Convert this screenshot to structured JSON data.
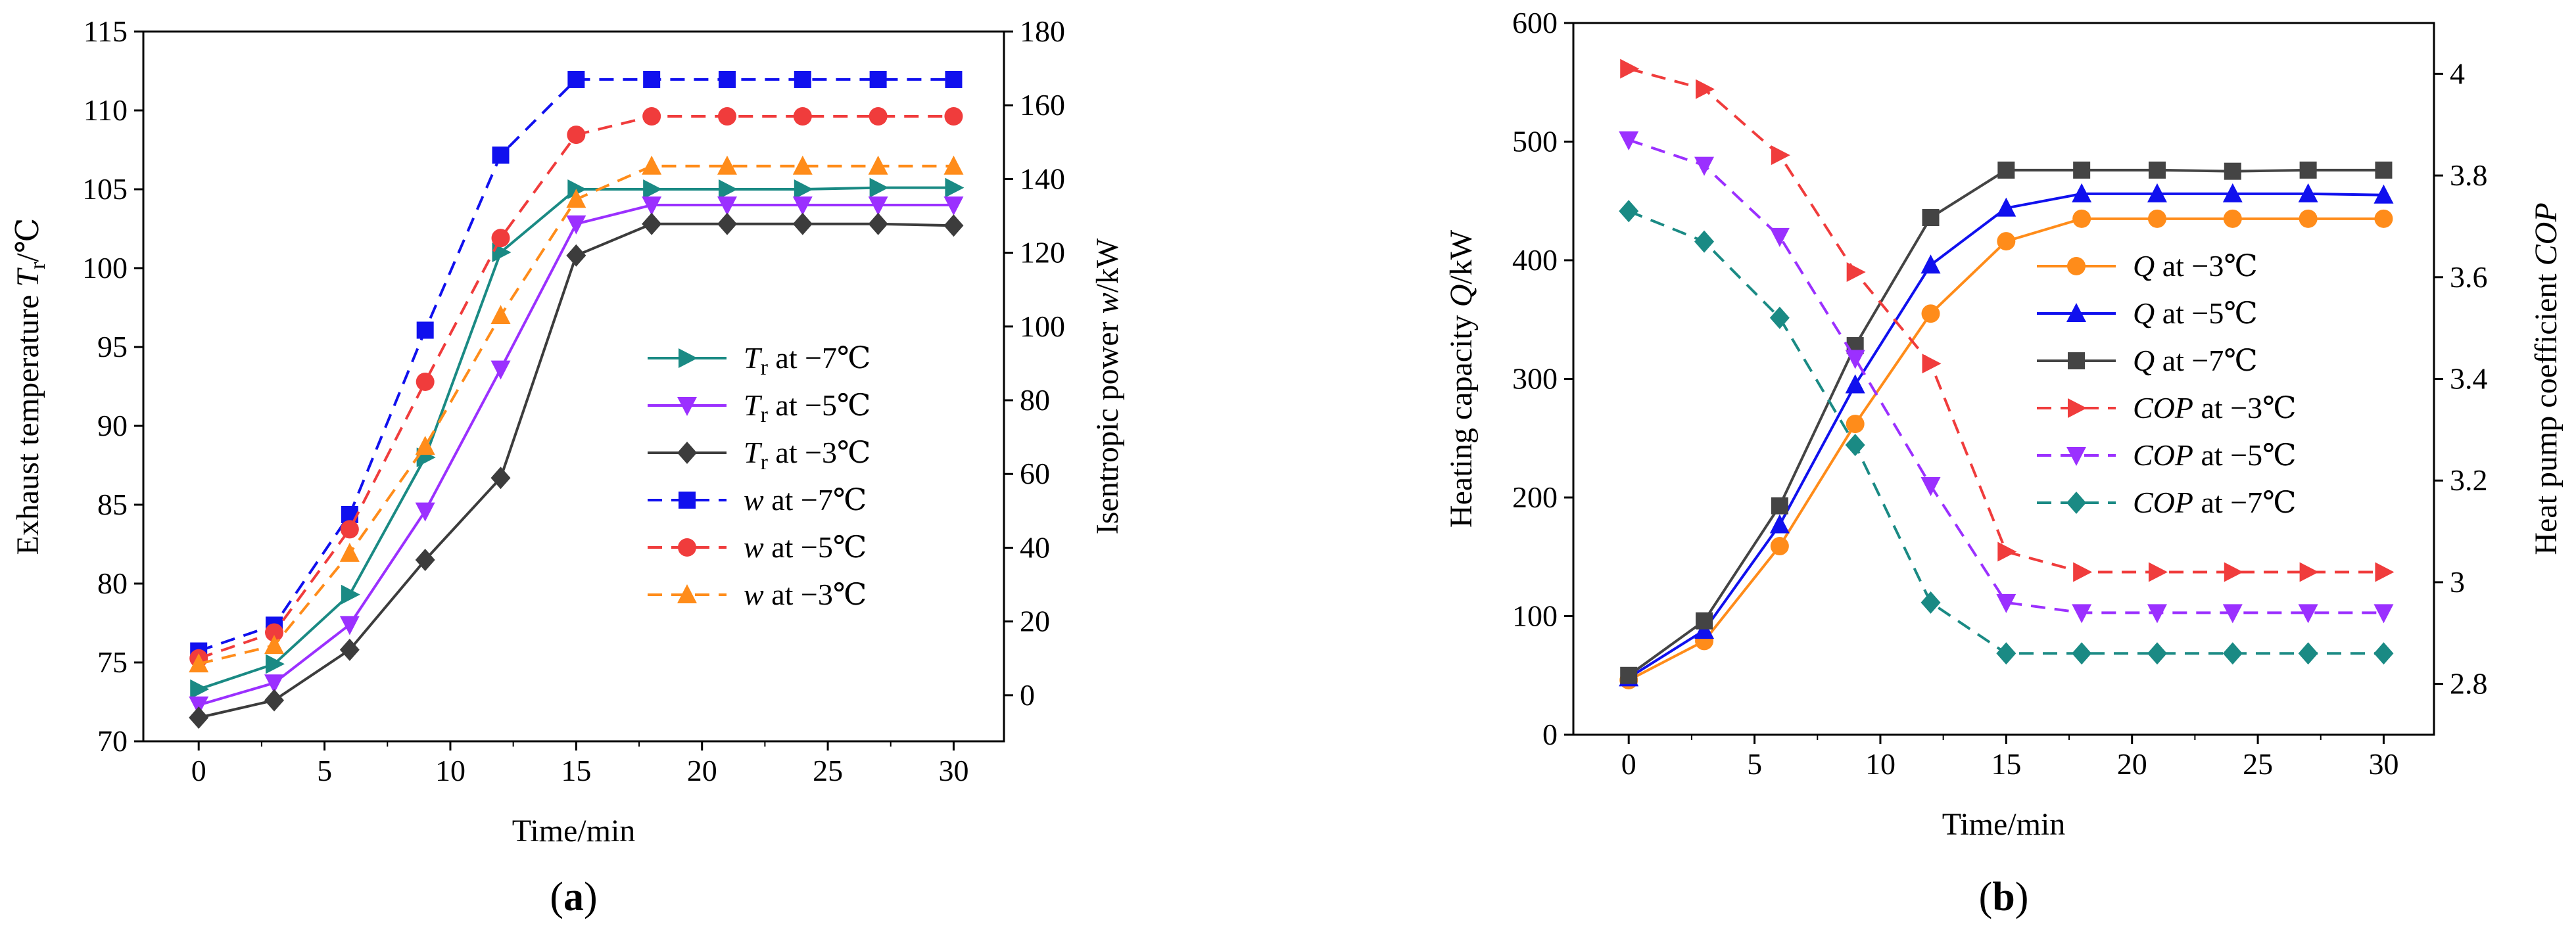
{
  "figure": {
    "panels": [
      "a",
      "b"
    ]
  },
  "chart_data": [
    {
      "id": "a",
      "type": "line",
      "caption": "(a)",
      "xlabel": "Time/min",
      "ylabel_left": {
        "main": "Exhaust temperature ",
        "italic": "T",
        "sub": "r",
        "tail": "/℃"
      },
      "ylabel_right": {
        "main": "Isentropic power ",
        "italic": "w",
        "tail": "/kW"
      },
      "xlim": [
        -2.2,
        32
      ],
      "ylim_left": [
        70,
        115
      ],
      "ylim_right": [
        -12.5,
        180
      ],
      "xticks": [
        0,
        5,
        10,
        15,
        20,
        25,
        30
      ],
      "yticks_left": [
        70,
        75,
        80,
        85,
        90,
        95,
        100,
        105,
        110,
        115
      ],
      "yticks_right": [
        0,
        20,
        40,
        60,
        80,
        100,
        120,
        140,
        160,
        180
      ],
      "x": [
        0,
        3,
        6,
        9,
        12,
        15,
        18,
        21,
        24,
        27,
        30
      ],
      "series": [
        {
          "name": "Tr at −7℃",
          "legend": {
            "italic": "T",
            "sub": "r",
            "rest": " at −7℃"
          },
          "axis": "left",
          "color": "#1a8a84",
          "dash": false,
          "marker": "triangle-right",
          "values": [
            73.3,
            74.9,
            79.3,
            88.0,
            101.0,
            105.0,
            105.0,
            105.0,
            105.0,
            105.1,
            105.1
          ]
        },
        {
          "name": "Tr at −5℃",
          "legend": {
            "italic": "T",
            "sub": "r",
            "rest": " at −5℃"
          },
          "axis": "left",
          "color": "#9b30ff",
          "dash": false,
          "marker": "triangle-down",
          "values": [
            72.3,
            73.7,
            77.4,
            84.6,
            93.6,
            102.8,
            104.0,
            104.0,
            104.0,
            104.0,
            104.0
          ]
        },
        {
          "name": "Tr at −3℃",
          "legend": {
            "italic": "T",
            "sub": "r",
            "rest": " at −3℃"
          },
          "axis": "left",
          "color": "#3c3c3c",
          "dash": false,
          "marker": "diamond",
          "values": [
            71.5,
            72.6,
            75.8,
            81.5,
            86.7,
            100.8,
            102.8,
            102.8,
            102.8,
            102.8,
            102.7
          ]
        },
        {
          "name": "w at −7℃",
          "legend": {
            "italic": "w",
            "rest": " at −7℃"
          },
          "axis": "right",
          "color": "#1010ee",
          "dash": true,
          "marker": "square",
          "values": [
            12.0,
            19.0,
            49.0,
            99.0,
            146.5,
            167.0,
            167.0,
            167.0,
            167.0,
            167.0,
            167.0
          ]
        },
        {
          "name": "w at −5℃",
          "legend": {
            "italic": "w",
            "rest": " at −5℃"
          },
          "axis": "right",
          "color": "#f03c3c",
          "dash": true,
          "marker": "circle",
          "values": [
            10.0,
            17.0,
            45.0,
            85.0,
            124.0,
            152.0,
            157.0,
            157.0,
            157.0,
            157.0,
            157.0
          ]
        },
        {
          "name": "w at −3℃",
          "legend": {
            "italic": "w",
            "rest": " at −3℃"
          },
          "axis": "right",
          "color": "#ff8c1a",
          "dash": true,
          "marker": "triangle-up",
          "values": [
            8.5,
            13.5,
            38.5,
            67.5,
            103.0,
            134.5,
            143.5,
            143.5,
            143.5,
            143.5,
            143.5
          ]
        }
      ]
    },
    {
      "id": "b",
      "type": "line",
      "caption": "(b)",
      "xlabel": "Time/min",
      "ylabel_left": {
        "main": "Heating capacity ",
        "italic": "Q",
        "tail": "/kW"
      },
      "ylabel_right": {
        "main": "Heat pump coefficient ",
        "italic": "COP",
        "tail": ""
      },
      "xlim": [
        -2.2,
        32
      ],
      "ylim_left": [
        0,
        600
      ],
      "ylim_right": [
        2.7,
        4.1
      ],
      "xticks": [
        0,
        5,
        10,
        15,
        20,
        25,
        30
      ],
      "yticks_left": [
        0,
        100,
        200,
        300,
        400,
        500,
        600
      ],
      "yticks_right": [
        2.8,
        3.0,
        3.2,
        3.4,
        3.6,
        3.8,
        4.0
      ],
      "x": [
        0,
        3,
        6,
        9,
        12,
        15,
        18,
        21,
        24,
        27,
        30
      ],
      "series": [
        {
          "name": "Q at −3℃",
          "legend": {
            "italic": "Q",
            "rest": " at −3℃"
          },
          "axis": "left",
          "color": "#ff8c1a",
          "dash": false,
          "marker": "circle",
          "values": [
            46,
            79,
            159,
            262,
            355,
            416,
            435,
            435,
            435,
            435,
            435
          ]
        },
        {
          "name": "Q at −5℃",
          "legend": {
            "italic": "Q",
            "rest": " at −5℃"
          },
          "axis": "left",
          "color": "#1010ee",
          "dash": false,
          "marker": "triangle-up",
          "values": [
            48,
            88,
            177,
            295,
            396,
            444,
            456,
            456,
            456,
            456,
            455
          ]
        },
        {
          "name": "Q at −7℃",
          "legend": {
            "italic": "Q",
            "rest": " at −7℃"
          },
          "axis": "left",
          "color": "#444444",
          "dash": false,
          "marker": "square",
          "values": [
            50,
            96,
            193,
            328,
            436,
            476,
            476,
            476,
            475,
            476,
            476
          ]
        },
        {
          "name": "COP at −3℃",
          "legend": {
            "italic": "COP",
            "rest": " at −3℃"
          },
          "axis": "right",
          "color": "#f03c3c",
          "dash": true,
          "marker": "triangle-right",
          "values": [
            4.01,
            3.97,
            3.84,
            3.61,
            3.43,
            3.06,
            3.02,
            3.02,
            3.02,
            3.02,
            3.02
          ]
        },
        {
          "name": "COP at −5℃",
          "legend": {
            "italic": "COP",
            "rest": " at −5℃"
          },
          "axis": "right",
          "color": "#9b30ff",
          "dash": true,
          "marker": "triangle-down",
          "values": [
            3.87,
            3.82,
            3.68,
            3.44,
            3.19,
            2.96,
            2.94,
            2.94,
            2.94,
            2.94,
            2.94
          ]
        },
        {
          "name": "COP at −7℃",
          "legend": {
            "italic": "COP",
            "rest": " at −7℃"
          },
          "axis": "right",
          "color": "#1a8a84",
          "dash": true,
          "marker": "diamond",
          "values": [
            3.73,
            3.67,
            3.52,
            3.27,
            2.96,
            2.86,
            2.86,
            2.86,
            2.86,
            2.86,
            2.86
          ]
        }
      ]
    }
  ]
}
